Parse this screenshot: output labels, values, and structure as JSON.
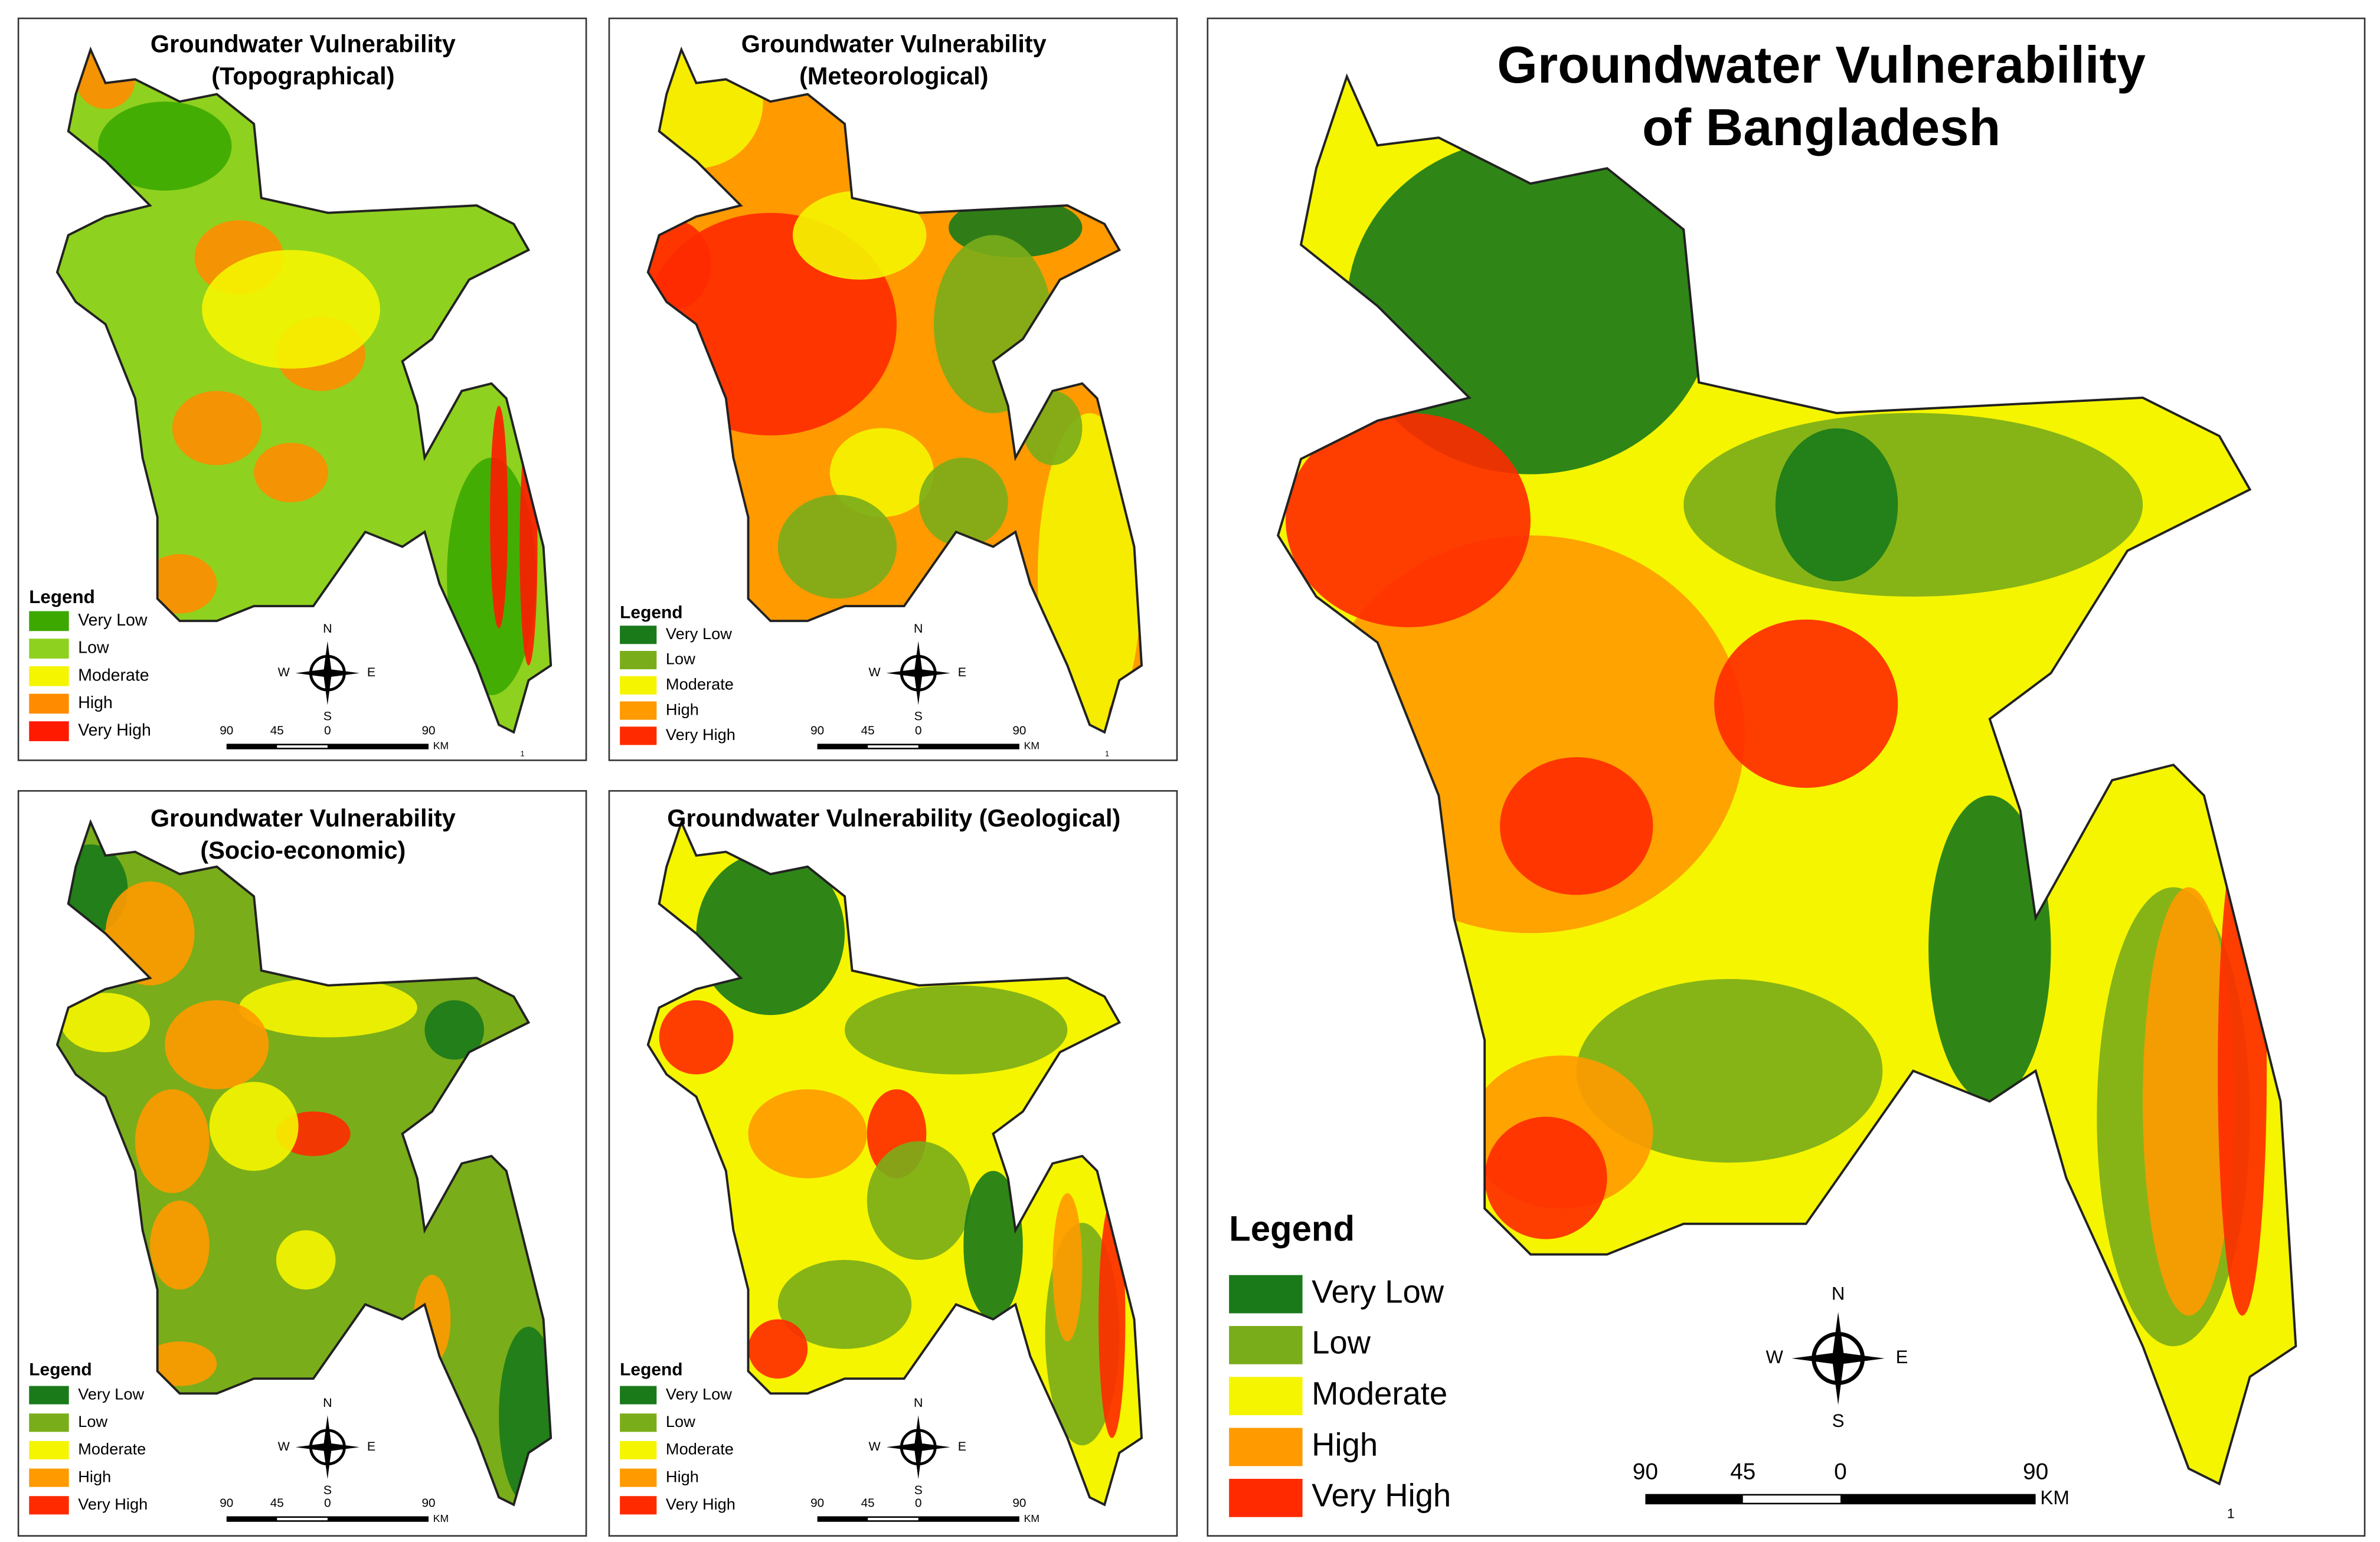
{
  "panels": [
    {
      "title": [
        "Groundwater Vulnerability",
        "(Topographical)"
      ],
      "legend_title": "Legend",
      "legend": [
        {
          "label": "Very Low",
          "color": "#3ca800"
        },
        {
          "label": "Low",
          "color": "#8fd11f"
        },
        {
          "label": "Moderate",
          "color": "#f5f500"
        },
        {
          "label": "High",
          "color": "#ff8c00"
        },
        {
          "label": "Very High",
          "color": "#ff1a00"
        }
      ],
      "compass": [
        "N",
        "S",
        "W",
        "E"
      ],
      "scale": [
        90,
        45,
        0,
        90
      ],
      "scale_unit": "KM",
      "page_mark": "1"
    },
    {
      "title": [
        "Groundwater Vulnerability",
        "(Meteorological)"
      ],
      "legend_title": "Legend",
      "legend": [
        {
          "label": "Very Low",
          "color": "#1a7a1a"
        },
        {
          "label": "Low",
          "color": "#7aad1a"
        },
        {
          "label": "Moderate",
          "color": "#f5f500"
        },
        {
          "label": "High",
          "color": "#ff9a00"
        },
        {
          "label": "Very High",
          "color": "#ff2a00"
        }
      ],
      "compass": [
        "N",
        "S",
        "W",
        "E"
      ],
      "scale": [
        90,
        45,
        0,
        90
      ],
      "scale_unit": "KM",
      "page_mark": "1"
    },
    {
      "title": [
        "Groundwater Vulnerability",
        "(Socio-economic)"
      ],
      "legend_title": "Legend",
      "legend": [
        {
          "label": "Very Low",
          "color": "#1a7a1a"
        },
        {
          "label": "Low",
          "color": "#7aad1a"
        },
        {
          "label": "Moderate",
          "color": "#f5f500"
        },
        {
          "label": "High",
          "color": "#ff9a00"
        },
        {
          "label": "Very High",
          "color": "#ff2a00"
        }
      ],
      "compass": [
        "N",
        "S",
        "W",
        "E"
      ],
      "scale": [
        90,
        45,
        0,
        90
      ],
      "scale_unit": "KM"
    },
    {
      "title": [
        "Groundwater Vulnerability (Geological)"
      ],
      "legend_title": "Legend",
      "legend": [
        {
          "label": "Very Low",
          "color": "#1a7a1a"
        },
        {
          "label": "Low",
          "color": "#7aad1a"
        },
        {
          "label": "Moderate",
          "color": "#f5f500"
        },
        {
          "label": "High",
          "color": "#ff9a00"
        },
        {
          "label": "Very High",
          "color": "#ff2a00"
        }
      ],
      "compass": [
        "N",
        "S",
        "W",
        "E"
      ],
      "scale": [
        90,
        45,
        0,
        90
      ],
      "scale_unit": "KM"
    },
    {
      "title": [
        "Groundwater Vulnerability",
        "of Bangladesh"
      ],
      "legend_title": "Legend",
      "legend": [
        {
          "label": "Very Low",
          "color": "#1a7a1a"
        },
        {
          "label": "Low",
          "color": "#7aad1a"
        },
        {
          "label": "Moderate",
          "color": "#f5f500"
        },
        {
          "label": "High",
          "color": "#ff9a00"
        },
        {
          "label": "Very High",
          "color": "#ff2a00"
        }
      ],
      "compass": [
        "N",
        "S",
        "W",
        "E"
      ],
      "scale": [
        90,
        45,
        0,
        90
      ],
      "scale_unit": "KM",
      "page_mark": "1"
    }
  ]
}
